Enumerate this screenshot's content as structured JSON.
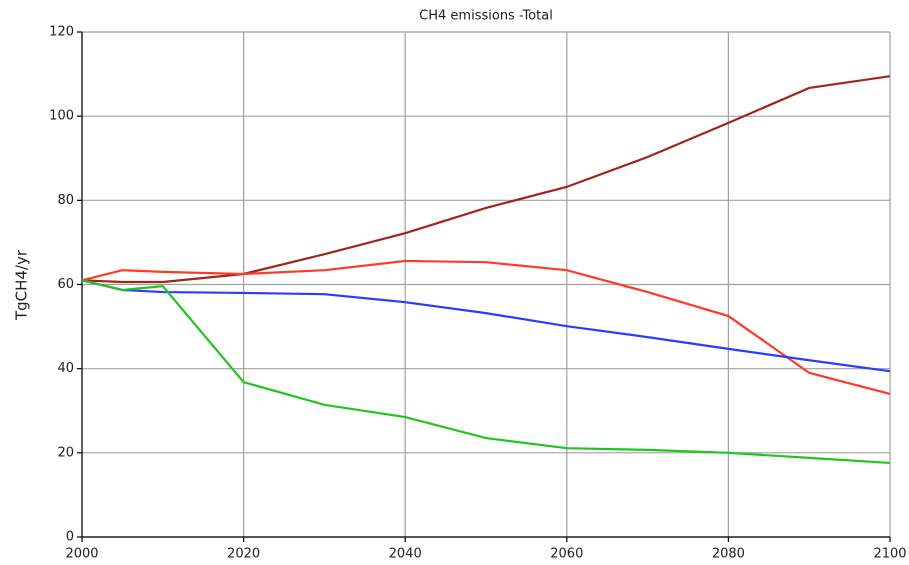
{
  "chart_data": {
    "type": "line",
    "title": "CH4 emissions -Total",
    "y_label": "TgCH4/yr",
    "x": [
      2000,
      2005,
      2010,
      2020,
      2030,
      2040,
      2050,
      2060,
      2070,
      2080,
      2090,
      2100
    ],
    "series": [
      {
        "color": "#a0261c",
        "values": [
          61,
          60.6,
          60.6,
          62.5,
          67.2,
          72.2,
          78.2,
          83.2,
          90.3,
          98.4,
          106.7,
          109.5
        ]
      },
      {
        "color": "#ff3a28",
        "values": [
          61,
          63.4,
          63,
          62.5,
          63.4,
          65.6,
          65.3,
          63.4,
          58.2,
          52.5,
          39,
          34
        ]
      },
      {
        "color": "#2a3cff",
        "values": [
          61,
          58.7,
          58.2,
          58,
          57.7,
          55.8,
          53.2,
          50.1,
          47.5,
          44.7,
          42,
          39.4
        ]
      },
      {
        "color": "#22c422",
        "values": [
          61,
          58.7,
          59.6,
          36.8,
          31.4,
          28.5,
          23.5,
          21.1,
          20.7,
          20,
          18.8,
          17.6
        ]
      }
    ],
    "xlim": [
      2000,
      2100
    ],
    "xticks": [
      2000,
      2020,
      2040,
      2060,
      2080,
      2100
    ],
    "ylim": [
      0,
      120
    ],
    "yticks": [
      0,
      20,
      40,
      60,
      80,
      100,
      120
    ],
    "grid": true
  }
}
